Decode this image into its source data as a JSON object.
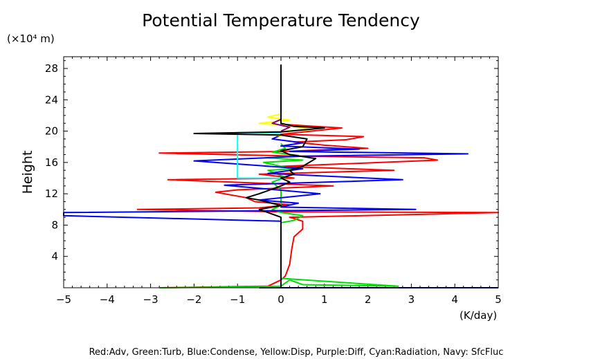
{
  "chart_data": {
    "type": "line",
    "title": "Potential Temperature Tendency",
    "ylabel": "Height",
    "y_unit": "(×10⁴ m)",
    "x_unit": "(K/day)",
    "xlim": [
      -5,
      5
    ],
    "ylim": [
      0,
      29.5
    ],
    "x_ticks": [
      -5,
      -4,
      -3,
      -2,
      -1,
      0,
      1,
      2,
      3,
      4,
      5
    ],
    "y_ticks": [
      4,
      8,
      12,
      16,
      20,
      24,
      28
    ],
    "legend_text": "Red:Adv, Green:Turb, Blue:Condense, Yellow:Disp, Purple:Diff, Cyan:Radiation, Navy: SfcFluc",
    "grid": false,
    "series": [
      {
        "name": "Red:Adv",
        "color": "#ff0000",
        "points": [
          [
            -2.8,
            0
          ],
          [
            -0.3,
            0.2
          ],
          [
            0,
            1
          ],
          [
            0.1,
            1.5
          ],
          [
            0.2,
            3
          ],
          [
            0.25,
            5
          ],
          [
            0.3,
            6.5
          ],
          [
            0.5,
            7.5
          ],
          [
            0.5,
            8.5
          ],
          [
            0.2,
            9
          ],
          [
            5,
            9.6
          ],
          [
            0,
            9.7
          ],
          [
            -3.3,
            10
          ],
          [
            -0.5,
            10.2
          ],
          [
            0.2,
            10.6
          ],
          [
            -0.6,
            11
          ],
          [
            -0.8,
            11.5
          ],
          [
            -1.5,
            12.2
          ],
          [
            -1,
            12.5
          ],
          [
            1.2,
            13
          ],
          [
            -2.6,
            13.8
          ],
          [
            0.3,
            14
          ],
          [
            -0.5,
            14.5
          ],
          [
            2.6,
            15
          ],
          [
            0,
            15.5
          ],
          [
            3.6,
            16.3
          ],
          [
            3.3,
            16.6
          ],
          [
            0.5,
            16.8
          ],
          [
            -2.8,
            17.2
          ],
          [
            0,
            17.4
          ],
          [
            2,
            17.8
          ],
          [
            1,
            18.2
          ],
          [
            0.3,
            18.6
          ],
          [
            1.5,
            18.9
          ],
          [
            1.9,
            19.3
          ],
          [
            0,
            19.6
          ],
          [
            1.4,
            20.4
          ],
          [
            0.5,
            20.7
          ],
          [
            0,
            20.9
          ],
          [
            0,
            22
          ]
        ]
      },
      {
        "name": "Green:Turb",
        "color": "#00dd00",
        "points": [
          [
            -2.8,
            0
          ],
          [
            -1,
            0.1
          ],
          [
            0,
            0.2
          ],
          [
            0.2,
            1
          ],
          [
            0.5,
            0.4
          ],
          [
            2.7,
            0.2
          ],
          [
            0,
            1.2
          ],
          [
            0,
            8.3
          ],
          [
            0.3,
            8.6
          ],
          [
            0.5,
            9.2
          ],
          [
            0,
            9.6
          ],
          [
            -0.2,
            10
          ],
          [
            0,
            10.5
          ],
          [
            0,
            12.5
          ],
          [
            -0.2,
            13.5
          ],
          [
            0.1,
            14.1
          ],
          [
            -0.3,
            15
          ],
          [
            0.3,
            15.2
          ],
          [
            0,
            15.5
          ],
          [
            -0.4,
            16
          ],
          [
            0.5,
            16.3
          ],
          [
            -0.3,
            16.6
          ],
          [
            0.4,
            16.9
          ],
          [
            -0.2,
            17.3
          ],
          [
            0.1,
            17.8
          ],
          [
            0,
            18.4
          ]
        ]
      },
      {
        "name": "Blue:Condense",
        "color": "#0000ff",
        "points": [
          [
            0,
            0
          ],
          [
            0,
            8.5
          ],
          [
            -5,
            9.2
          ],
          [
            -5,
            9.6
          ],
          [
            3.1,
            10
          ],
          [
            0,
            10.3
          ],
          [
            0.4,
            10.8
          ],
          [
            -0.5,
            11.2
          ],
          [
            0.9,
            12
          ],
          [
            -1.3,
            13.1
          ],
          [
            0.5,
            13.4
          ],
          [
            2.8,
            13.8
          ],
          [
            -0.3,
            14.6
          ],
          [
            0.5,
            15.2
          ],
          [
            -2,
            16.2
          ],
          [
            0.5,
            16.8
          ],
          [
            4.3,
            17.1
          ],
          [
            0.2,
            17.4
          ],
          [
            1.8,
            17.7
          ],
          [
            0,
            18.1
          ],
          [
            0.5,
            18.5
          ],
          [
            -0.2,
            19
          ],
          [
            0,
            19.5
          ]
        ]
      },
      {
        "name": "Yellow:Disp",
        "color": "#ffff00",
        "points": [
          [
            0,
            19.4
          ],
          [
            -0.5,
            19.8
          ],
          [
            0.7,
            20.2
          ],
          [
            0.3,
            20.6
          ],
          [
            -0.5,
            21
          ],
          [
            0.2,
            21.4
          ],
          [
            -0.3,
            21.8
          ],
          [
            0,
            22.2
          ],
          [
            0,
            23
          ]
        ]
      },
      {
        "name": "Purple:Diff",
        "color": "#800080",
        "points": [
          [
            0,
            20
          ],
          [
            0.2,
            20.5
          ],
          [
            -0.2,
            21
          ],
          [
            0,
            21.5
          ],
          [
            0,
            28
          ]
        ]
      },
      {
        "name": "Cyan:Radiation",
        "color": "#00ffff",
        "points": [
          [
            0,
            19.8
          ],
          [
            -1,
            19.8
          ],
          [
            -1,
            14
          ],
          [
            0,
            14
          ]
        ]
      },
      {
        "name": "Black",
        "color": "#000000",
        "points": [
          [
            0,
            0
          ],
          [
            0,
            9
          ],
          [
            -0.5,
            10
          ],
          [
            0,
            10.5
          ],
          [
            -0.5,
            11.2
          ],
          [
            -0.8,
            11.5
          ],
          [
            -0.5,
            12
          ],
          [
            0,
            13
          ],
          [
            0.2,
            13.5
          ],
          [
            0,
            14
          ],
          [
            0.3,
            14.5
          ],
          [
            0.2,
            15
          ],
          [
            0.5,
            15.5
          ],
          [
            0.8,
            16.5
          ],
          [
            0.2,
            17
          ],
          [
            0,
            17.5
          ],
          [
            0.5,
            18
          ],
          [
            0.6,
            19
          ],
          [
            0,
            19.5
          ],
          [
            -2,
            19.7
          ],
          [
            0,
            19.9
          ],
          [
            1,
            20.4
          ],
          [
            0.3,
            20.6
          ],
          [
            0,
            21
          ],
          [
            0,
            28.5
          ]
        ]
      },
      {
        "name": "Navy: SfcFluc",
        "color": "#000080",
        "points": [
          [
            -0.5,
            0
          ],
          [
            5,
            0
          ]
        ]
      }
    ]
  }
}
